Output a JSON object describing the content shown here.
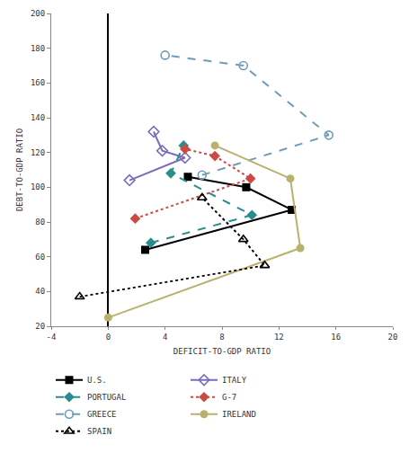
{
  "chart_data": {
    "type": "line",
    "x_label": "DEFICIT-TO-GDP RATIO",
    "y_label": "DEBT-TO-GDP RATIO",
    "xlim": [
      -4,
      20
    ],
    "xticks": [
      -4,
      0,
      4,
      8,
      12,
      16,
      20
    ],
    "ylim": [
      20,
      200
    ],
    "yticks": [
      20,
      40,
      60,
      80,
      100,
      120,
      140,
      160,
      180,
      200
    ],
    "grid": false,
    "legend": "bottom",
    "series": [
      {
        "name": "U.S.",
        "color": "#000000",
        "marker": "square",
        "line_style": "solid",
        "x": [
          2.6,
          12.9,
          9.7,
          5.6
        ],
        "y": [
          64,
          87,
          100,
          106
        ]
      },
      {
        "name": "ITALY",
        "color": "#7b6bb8",
        "marker": "diamond-open",
        "line_style": "solid",
        "x": [
          1.5,
          5.4,
          3.8,
          3.2
        ],
        "y": [
          104,
          117,
          121,
          132
        ]
      },
      {
        "name": "PORTUGAL",
        "color": "#2a8c8c",
        "marker": "diamond",
        "line_style": "dash",
        "x": [
          3.0,
          10.1,
          4.4,
          5.3
        ],
        "y": [
          68,
          84,
          108,
          124
        ]
      },
      {
        "name": "G-7",
        "color": "#cc4a44",
        "marker": "diamond",
        "line_style": "dot",
        "x": [
          1.9,
          10.0,
          7.5,
          5.4
        ],
        "y": [
          82,
          105,
          118,
          122
        ]
      },
      {
        "name": "GREECE",
        "color": "#6f9cb8",
        "marker": "circle-open",
        "line_style": "dash",
        "x": [
          6.6,
          15.5,
          9.5,
          4.0
        ],
        "y": [
          107,
          130,
          170,
          176
        ]
      },
      {
        "name": "IRELAND",
        "color": "#b8b26e",
        "marker": "circle",
        "line_style": "solid",
        "x": [
          0.0,
          13.5,
          12.8,
          7.5
        ],
        "y": [
          25,
          65,
          105,
          124
        ]
      },
      {
        "name": "SPAIN",
        "color": "#000000",
        "marker": "triangle-up-open",
        "line_style": "dot",
        "x": [
          -2.0,
          11.0,
          9.5,
          6.6
        ],
        "y": [
          37,
          55,
          70,
          94
        ]
      }
    ]
  }
}
